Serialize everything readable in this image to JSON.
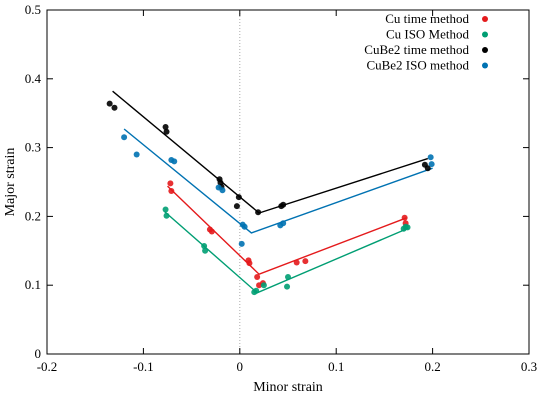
{
  "chart_data": {
    "type": "scatter",
    "xlabel": "Minor strain",
    "ylabel": "Major strain",
    "xlim": [
      -0.2,
      0.3
    ],
    "ylim": [
      0,
      0.5
    ],
    "x_ticks": [
      -0.2,
      -0.1,
      0,
      0.1,
      0.2,
      0.3
    ],
    "x_tick_labels": [
      "-0.2",
      "-0.1",
      "0",
      "0.1",
      "0.2",
      "0.3"
    ],
    "y_ticks": [
      0,
      0.1,
      0.2,
      0.3,
      0.4,
      0.5
    ],
    "y_tick_labels": [
      "0",
      "0.1",
      "0.2",
      "0.3",
      "0.4",
      "0.5"
    ],
    "grid": false,
    "zero_line": true,
    "legend_position": "top-right",
    "series": [
      {
        "name": "Cu time method",
        "color": "#e41a1c",
        "points": [
          [
            -0.072,
            0.248
          ],
          [
            -0.071,
            0.237
          ],
          [
            -0.031,
            0.181
          ],
          [
            -0.029,
            0.178
          ],
          [
            0.009,
            0.136
          ],
          [
            0.01,
            0.132
          ],
          [
            0.018,
            0.112
          ],
          [
            0.02,
            0.1
          ],
          [
            0.024,
            0.103
          ],
          [
            0.059,
            0.133
          ],
          [
            0.068,
            0.135
          ],
          [
            0.171,
            0.198
          ],
          [
            0.172,
            0.19
          ]
        ],
        "fit": [
          [
            -0.075,
            0.244
          ],
          [
            0.02,
            0.116
          ],
          [
            0.173,
            0.198
          ]
        ]
      },
      {
        "name": "Cu ISO Method",
        "color": "#009e73",
        "points": [
          [
            -0.077,
            0.21
          ],
          [
            -0.076,
            0.201
          ],
          [
            -0.037,
            0.157
          ],
          [
            -0.036,
            0.15
          ],
          [
            0.015,
            0.09
          ],
          [
            0.017,
            0.092
          ],
          [
            0.025,
            0.1
          ],
          [
            0.049,
            0.098
          ],
          [
            0.05,
            0.112
          ],
          [
            0.17,
            0.182
          ],
          [
            0.172,
            0.185
          ],
          [
            0.174,
            0.184
          ]
        ],
        "fit": [
          [
            -0.078,
            0.207
          ],
          [
            0.018,
            0.089
          ],
          [
            0.175,
            0.183
          ]
        ]
      },
      {
        "name": "CuBe2 time method",
        "color": "#000000",
        "points": [
          [
            -0.135,
            0.364
          ],
          [
            -0.13,
            0.358
          ],
          [
            -0.077,
            0.33
          ],
          [
            -0.076,
            0.323
          ],
          [
            -0.021,
            0.254
          ],
          [
            -0.02,
            0.249
          ],
          [
            -0.019,
            0.243
          ],
          [
            -0.003,
            0.215
          ],
          [
            -0.001,
            0.228
          ],
          [
            0.019,
            0.206
          ],
          [
            0.043,
            0.215
          ],
          [
            0.045,
            0.217
          ],
          [
            0.192,
            0.275
          ],
          [
            0.195,
            0.27
          ]
        ],
        "fit": [
          [
            -0.132,
            0.382
          ],
          [
            0.02,
            0.205
          ],
          [
            0.195,
            0.284
          ]
        ]
      },
      {
        "name": "CuBe2 ISO method",
        "color": "#0072b2",
        "points": [
          [
            -0.12,
            0.315
          ],
          [
            -0.107,
            0.29
          ],
          [
            -0.071,
            0.282
          ],
          [
            -0.068,
            0.28
          ],
          [
            -0.022,
            0.242
          ],
          [
            -0.018,
            0.238
          ],
          [
            0.002,
            0.16
          ],
          [
            0.003,
            0.188
          ],
          [
            0.005,
            0.185
          ],
          [
            0.042,
            0.187
          ],
          [
            0.045,
            0.19
          ],
          [
            0.198,
            0.286
          ],
          [
            0.199,
            0.276
          ]
        ],
        "fit": [
          [
            -0.12,
            0.327
          ],
          [
            0.012,
            0.176
          ],
          [
            0.2,
            0.27
          ]
        ]
      }
    ]
  }
}
